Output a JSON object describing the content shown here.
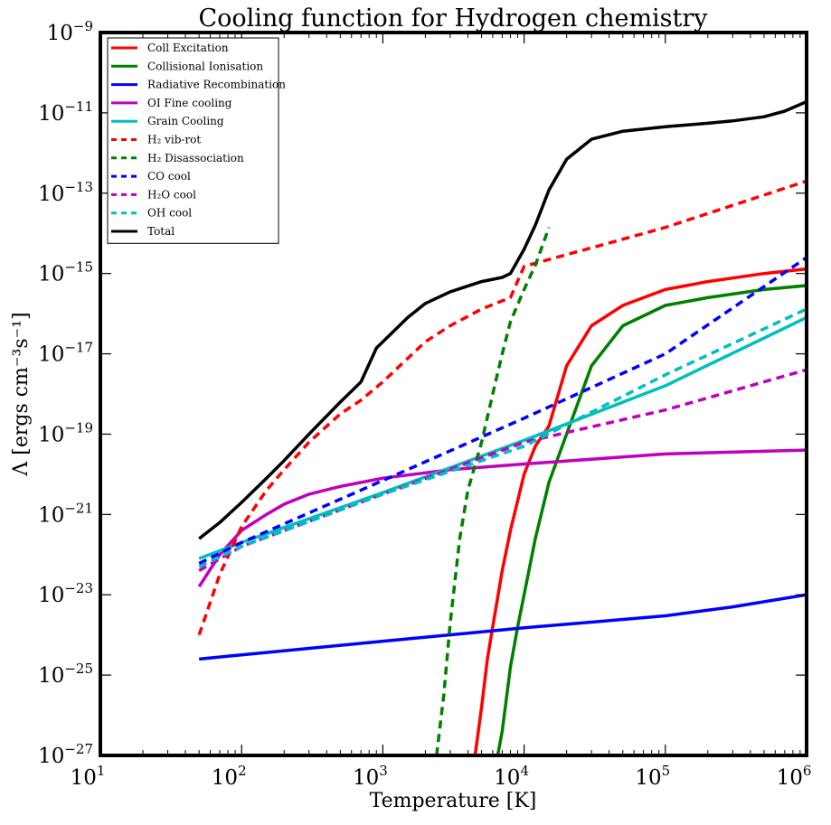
{
  "chart_data": {
    "type": "line",
    "title": "Cooling function for Hydrogen chemistry",
    "xlabel": "Temperature [K]",
    "ylabel": "Λ [ergs cm⁻³s⁻¹]",
    "xscale": "log",
    "yscale": "log",
    "xlim": [
      10,
      1000000
    ],
    "ylim": [
      1e-27,
      1e-09
    ],
    "x_ticks": [
      {
        "value": 10,
        "base": "10",
        "exp": "1"
      },
      {
        "value": 100,
        "base": "10",
        "exp": "2"
      },
      {
        "value": 1000,
        "base": "10",
        "exp": "3"
      },
      {
        "value": 10000,
        "base": "10",
        "exp": "4"
      },
      {
        "value": 100000,
        "base": "10",
        "exp": "5"
      },
      {
        "value": 1000000,
        "base": "10",
        "exp": "6"
      }
    ],
    "y_ticks": [
      {
        "value": 1e-27,
        "base": "10",
        "exp": "−27"
      },
      {
        "value": 1e-25,
        "base": "10",
        "exp": "−25"
      },
      {
        "value": 1e-23,
        "base": "10",
        "exp": "−23"
      },
      {
        "value": 1e-21,
        "base": "10",
        "exp": "−21"
      },
      {
        "value": 1e-19,
        "base": "10",
        "exp": "−19"
      },
      {
        "value": 1e-17,
        "base": "10",
        "exp": "−17"
      },
      {
        "value": 1e-15,
        "base": "10",
        "exp": "−15"
      },
      {
        "value": 1e-13,
        "base": "10",
        "exp": "−13"
      },
      {
        "value": 1e-11,
        "base": "10",
        "exp": "−11"
      },
      {
        "value": 1e-09,
        "base": "10",
        "exp": "−9"
      }
    ],
    "grid": false,
    "legend_position": "top-left",
    "series": [
      {
        "name": "Coll Excitation",
        "color": "#ff0000",
        "dash": "solid",
        "x": [
          4500,
          5000,
          5500,
          6000,
          7000,
          8000,
          10000,
          12000,
          15000,
          20000,
          30000,
          50000,
          100000,
          200000,
          500000,
          1000000
        ],
        "y": [
          1e-27,
          1.6e-26,
          2.5e-25,
          1.6e-24,
          4e-23,
          4e-22,
          1e-20,
          5e-20,
          1.6e-19,
          5e-18,
          5e-17,
          1.6e-16,
          4e-16,
          6.3e-16,
          1e-15,
          1.3e-15
        ]
      },
      {
        "name": "Collisional Ionisation",
        "color": "#008000",
        "dash": "solid",
        "x": [
          6500,
          7000,
          8000,
          9000,
          10000,
          12000,
          15000,
          20000,
          30000,
          50000,
          100000,
          200000,
          500000,
          1000000
        ],
        "y": [
          1e-27,
          4e-27,
          1.6e-25,
          1.6e-24,
          1e-23,
          2.5e-22,
          6.3e-21,
          1e-19,
          5e-18,
          5e-17,
          1.6e-16,
          2.5e-16,
          4e-16,
          5e-16
        ]
      },
      {
        "name": "Radiative Recombination",
        "color": "#0000ff",
        "dash": "solid",
        "x": [
          50,
          100,
          1000,
          10000,
          100000,
          300000,
          1000000
        ],
        "y": [
          2.5e-25,
          3.2e-25,
          7e-25,
          1.5e-24,
          3e-24,
          5e-24,
          1e-23
        ]
      },
      {
        "name": "OI Fine cooling",
        "color": "#bf00bf",
        "dash": "solid",
        "x": [
          50,
          70,
          100,
          150,
          200,
          300,
          500,
          1000,
          3000,
          10000,
          100000,
          1000000
        ],
        "y": [
          1.6e-23,
          1e-22,
          4e-22,
          1e-21,
          1.8e-21,
          3.2e-21,
          5e-21,
          8e-21,
          1.3e-20,
          1.8e-20,
          3.2e-20,
          4e-20
        ]
      },
      {
        "name": "Grain Cooling",
        "color": "#00bfbf",
        "dash": "solid",
        "x": [
          50,
          100,
          1000,
          10000,
          100000,
          1000000
        ],
        "y": [
          8e-23,
          2e-22,
          3.5e-21,
          7e-20,
          1.6e-18,
          8e-17
        ]
      },
      {
        "name": "H₂ vib-rot",
        "color": "#ff0000",
        "dash": "dashed",
        "x": [
          50,
          70,
          100,
          150,
          200,
          300,
          500,
          700,
          1000,
          2000,
          3000,
          5000,
          8000,
          10000,
          100000,
          1000000
        ],
        "y": [
          1e-24,
          3.2e-23,
          5e-22,
          4e-21,
          1.3e-20,
          6.3e-20,
          3.2e-19,
          7e-19,
          2e-18,
          2e-17,
          5e-17,
          1.3e-16,
          2.5e-16,
          1.5e-15,
          1.4e-14,
          2e-13
        ]
      },
      {
        "name": "H₂ Disassociation",
        "color": "#008000",
        "dash": "dashed",
        "x": [
          2400,
          2700,
          3000,
          3500,
          4000,
          5000,
          6000,
          7000,
          8000,
          10000,
          12000,
          15000
        ],
        "y": [
          1e-27,
          3.2e-26,
          2e-24,
          2.5e-22,
          4e-21,
          6.3e-20,
          1e-18,
          1e-17,
          6.3e-17,
          4e-16,
          1.6e-15,
          1.4e-14
        ]
      },
      {
        "name": "CO cool",
        "color": "#0000ff",
        "dash": "dashed",
        "x": [
          50,
          100,
          1000,
          10000,
          100000,
          1000000
        ],
        "y": [
          6e-23,
          2e-22,
          7e-21,
          2.5e-19,
          1e-17,
          2.5e-15
        ]
      },
      {
        "name": "H₂O cool",
        "color": "#bf00bf",
        "dash": "dashed",
        "x": [
          50,
          100,
          1000,
          10000,
          100000,
          1000000
        ],
        "y": [
          4e-23,
          1.6e-22,
          3.2e-21,
          6.3e-20,
          4e-19,
          4e-18
        ]
      },
      {
        "name": "OH cool",
        "color": "#00bfbf",
        "dash": "dashed",
        "x": [
          50,
          100,
          1000,
          10000,
          100000,
          1000000
        ],
        "y": [
          5e-23,
          1.6e-22,
          3.2e-21,
          5e-20,
          3e-18,
          1.3e-16
        ]
      },
      {
        "name": "Total",
        "color": "#000000",
        "dash": "solid",
        "x": [
          50,
          70,
          100,
          150,
          200,
          300,
          500,
          700,
          900,
          1000,
          1500,
          2000,
          3000,
          5000,
          7000,
          8000,
          10000,
          12000,
          15000,
          20000,
          30000,
          50000,
          100000,
          200000,
          300000,
          500000,
          700000,
          1000000
        ],
        "y": [
          2.5e-22,
          6.3e-22,
          2e-21,
          8e-21,
          2.2e-20,
          1e-19,
          6.3e-19,
          2e-18,
          1.4e-17,
          2e-17,
          8e-17,
          1.8e-16,
          3.5e-16,
          6.3e-16,
          8e-16,
          1e-15,
          4e-15,
          1.6e-14,
          1.2e-13,
          7e-13,
          2.2e-12,
          3.5e-12,
          4.5e-12,
          5.5e-12,
          6.3e-12,
          8e-12,
          1.1e-11,
          1.9e-11
        ]
      }
    ]
  }
}
